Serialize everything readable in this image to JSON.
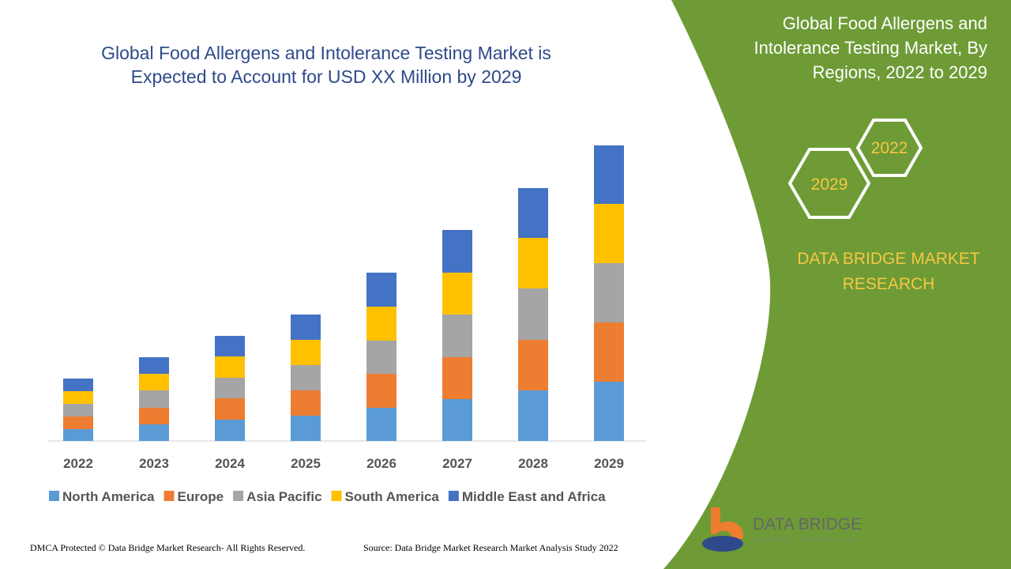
{
  "chart_data": {
    "type": "bar",
    "stacked": true,
    "title": "Global Food Allergens and Intolerance Testing Market is Expected to Account for USD XX Million by 2029",
    "categories": [
      "2022",
      "2023",
      "2024",
      "2025",
      "2026",
      "2027",
      "2028",
      "2029"
    ],
    "series": [
      {
        "name": "North America",
        "color": "#5b9bd5",
        "values": [
          15,
          21,
          27,
          32,
          42,
          53,
          64,
          75
        ]
      },
      {
        "name": "Europe",
        "color": "#ed7d31",
        "values": [
          16,
          21,
          27,
          32,
          43,
          53,
          64,
          75
        ]
      },
      {
        "name": "Asia Pacific",
        "color": "#a5a5a5",
        "values": [
          16,
          22,
          26,
          32,
          42,
          54,
          65,
          75
        ]
      },
      {
        "name": "South America",
        "color": "#ffc000",
        "values": [
          16,
          21,
          27,
          32,
          43,
          53,
          64,
          75
        ]
      },
      {
        "name": "Middle East and Africa",
        "color": "#4472c4",
        "values": [
          16,
          21,
          26,
          32,
          43,
          54,
          63,
          74
        ]
      }
    ],
    "legend": "bottom"
  },
  "side_panel": {
    "title": "Global Food Allergens and Intolerance Testing Market, By Regions, 2022 to 2029",
    "badges": [
      "2022",
      "2029"
    ],
    "brand": "DATA BRIDGE MARKET RESEARCH"
  },
  "logo": {
    "name": "DATA BRIDGE",
    "tagline": "MARKET RESEARCH"
  },
  "footer": {
    "copyright": "DMCA Protected © Data Bridge Market Research- All Rights Reserved.",
    "source": "Source: Data Bridge Market Research Market Analysis Study 2022"
  }
}
